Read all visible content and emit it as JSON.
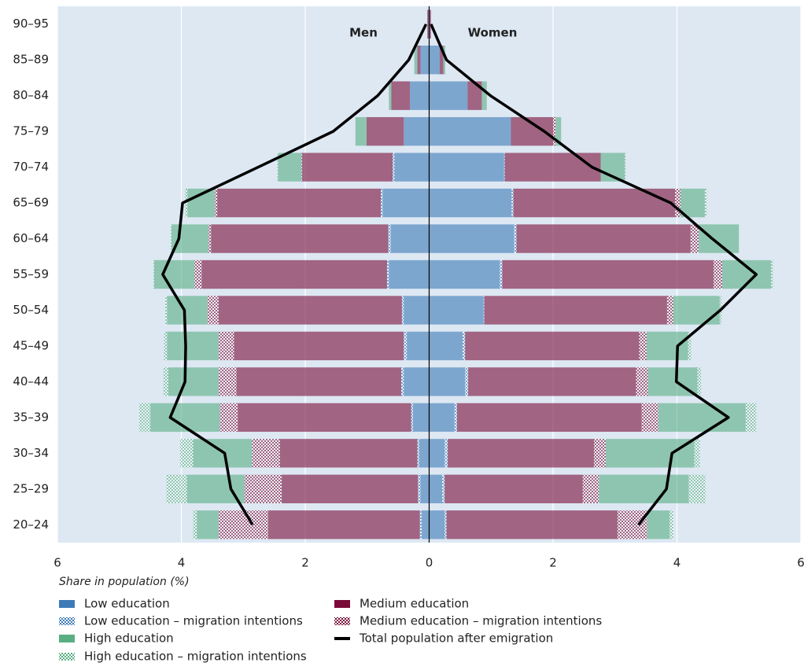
{
  "chart_data": {
    "type": "pyramid",
    "left_label": "Men",
    "right_label": "Women",
    "x_label": "Share in population (%)",
    "categories": [
      "20–24",
      "25–29",
      "30–34",
      "35–39",
      "40–44",
      "45–49",
      "50–54",
      "55–59",
      "60–64",
      "65–69",
      "70–74",
      "75–79",
      "80–84",
      "85–89",
      "90–95"
    ],
    "xlim": [
      -6,
      6
    ],
    "xticks": [
      {
        "value": -6,
        "label": "6"
      },
      {
        "value": -4,
        "label": "4"
      },
      {
        "value": -2,
        "label": "2"
      },
      0,
      2,
      4,
      6
    ],
    "grid": true,
    "series": [
      {
        "name": "Low education",
        "color": "#3d7ab8",
        "pattern": false,
        "men": [
          0.12,
          0.14,
          0.16,
          0.26,
          0.41,
          0.36,
          0.41,
          0.65,
          0.62,
          0.75,
          0.56,
          0.41,
          0.31,
          0.14,
          0.01
        ],
        "women": [
          0.25,
          0.21,
          0.25,
          0.41,
          0.58,
          0.54,
          0.88,
          1.14,
          1.37,
          1.33,
          1.21,
          1.32,
          0.62,
          0.17,
          0.01
        ]
      },
      {
        "name": "Low education – migration intentions",
        "color": "#3d7ab8",
        "pattern": true,
        "men": [
          0.03,
          0.04,
          0.03,
          0.03,
          0.04,
          0.05,
          0.03,
          0.03,
          0.04,
          0.03,
          0.03,
          0,
          0,
          0,
          0
        ],
        "women": [
          0.03,
          0.04,
          0.05,
          0.04,
          0.05,
          0.04,
          0.01,
          0.04,
          0.04,
          0.03,
          0.01,
          0,
          0,
          0,
          0
        ]
      },
      {
        "name": "Medium education",
        "color": "#7a0b38",
        "pattern": false,
        "men": [
          2.45,
          2.2,
          2.22,
          2.8,
          2.66,
          2.74,
          2.96,
          2.99,
          2.86,
          2.64,
          1.46,
          0.6,
          0.3,
          0.05,
          0.02
        ],
        "women": [
          2.76,
          2.23,
          2.36,
          2.98,
          2.71,
          2.81,
          2.95,
          3.41,
          2.81,
          2.61,
          1.55,
          0.68,
          0.23,
          0.06,
          0.02
        ]
      },
      {
        "name": "Medium education – migration intentions",
        "color": "#7a0b38",
        "pattern": true,
        "men": [
          0.8,
          0.6,
          0.45,
          0.29,
          0.29,
          0.25,
          0.18,
          0.12,
          0.04,
          0.04,
          0.01,
          0,
          0,
          0,
          0
        ],
        "women": [
          0.48,
          0.26,
          0.19,
          0.27,
          0.19,
          0.12,
          0.1,
          0.14,
          0.13,
          0.09,
          0,
          0.04,
          0,
          0,
          0
        ]
      },
      {
        "name": "High education",
        "color": "#5aae84",
        "pattern": false,
        "men": [
          0.35,
          0.93,
          0.95,
          1.12,
          0.81,
          0.83,
          0.65,
          0.65,
          0.6,
          0.44,
          0.38,
          0.18,
          0.04,
          0.05,
          0
        ],
        "women": [
          0.36,
          1.45,
          1.43,
          1.41,
          0.8,
          0.67,
          0.75,
          0.79,
          0.65,
          0.39,
          0.39,
          0.09,
          0.08,
          0.03,
          0
        ]
      },
      {
        "name": "High education – migration intentions",
        "color": "#5aae84",
        "pattern": true,
        "men": [
          0.06,
          0.33,
          0.21,
          0.18,
          0.08,
          0.05,
          0.03,
          0.01,
          0.01,
          0.04,
          0.01,
          0,
          0,
          0,
          0
        ],
        "women": [
          0.06,
          0.27,
          0.09,
          0.17,
          0.06,
          0.05,
          0.03,
          0.03,
          0,
          0.03,
          0.01,
          0,
          0,
          0,
          0
        ]
      }
    ],
    "line": {
      "name": "Total population after emigration",
      "color": "#000000",
      "men": [
        2.85,
        3.2,
        3.3,
        4.18,
        3.94,
        3.93,
        3.95,
        4.3,
        4.04,
        3.98,
        2.76,
        1.55,
        0.83,
        0.33,
        0.05
      ],
      "women": [
        3.38,
        3.83,
        3.92,
        4.83,
        3.99,
        4.01,
        4.7,
        5.28,
        4.57,
        3.9,
        2.63,
        1.86,
        0.99,
        0.28,
        0.03
      ]
    }
  }
}
